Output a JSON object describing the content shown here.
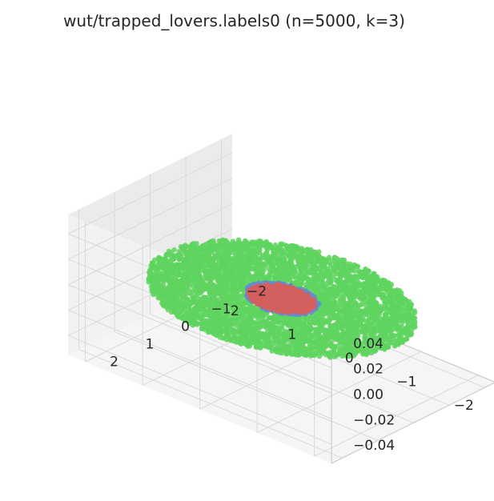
{
  "chart_data": {
    "type": "scatter",
    "projection": "3d",
    "title": "wut/trapped_lovers.labels0 (n=5000, k=3)",
    "xlabel": "",
    "ylabel": "",
    "zlabel": "",
    "xlim": [
      -2.3,
      2.3
    ],
    "ylim": [
      -2.3,
      2.3
    ],
    "zlim": [
      -0.055,
      0.055
    ],
    "x_ticks": [
      "−2",
      "−1",
      "0",
      "1",
      "2"
    ],
    "y_ticks": [
      "−2",
      "−1",
      "0",
      "1",
      "2"
    ],
    "z_ticks": [
      "−0.04",
      "−0.02",
      "0.00",
      "0.02",
      "0.04"
    ],
    "grid": true,
    "series": [
      {
        "color": "#5fd35f",
        "shape": "annulus",
        "inner_radius": 0.55,
        "outer_radius": 2.0,
        "z": 0.0,
        "n_points": 4000
      },
      {
        "color": "#5f8ed3",
        "shape": "disc",
        "radius": 0.55,
        "z": 0.0,
        "n_points": 500
      },
      {
        "color": "#d35f5f",
        "shape": "disc",
        "radius": 0.5,
        "z": 0.0,
        "n_points": 500
      }
    ]
  }
}
